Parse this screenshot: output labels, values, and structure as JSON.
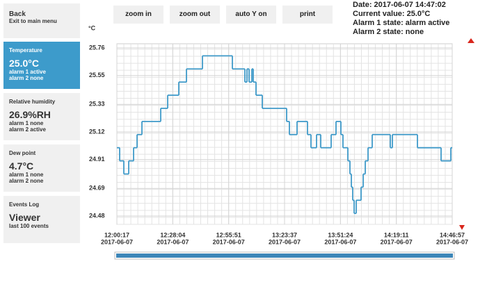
{
  "sidebar": {
    "back": {
      "title": "Back",
      "subtitle": "Exit to main menu"
    },
    "panels": [
      {
        "title": "Temperature",
        "value": "25.0°C",
        "lines": [
          "alarm 1 active",
          "alarm 2 none"
        ]
      },
      {
        "title": "Relative humidity",
        "value": "26.9%RH",
        "lines": [
          "alarm 1 none",
          "alarm 2 active"
        ]
      },
      {
        "title": "Dew point",
        "value": "4.7°C",
        "lines": [
          "alarm 1 none",
          "alarm 2 none"
        ]
      },
      {
        "title": "Events Log",
        "value": "Viewer",
        "lines": [
          "last 100 events"
        ]
      }
    ]
  },
  "toolbar": {
    "buttons": [
      "zoom in",
      "zoom out",
      "auto Y on",
      "print"
    ]
  },
  "status": [
    "Date: 2017-06-07 14:47:02",
    "Current value: 25.0°C",
    "Alarm 1 state: alarm active",
    "Alarm 2 state: none"
  ],
  "chart_data": {
    "type": "line",
    "step": true,
    "y_unit": "°C",
    "x": [
      43217,
      43300,
      43424,
      43570,
      43715,
      43819,
      43964,
      44524,
      44732,
      45063,
      45292,
      45769,
      46661,
      47034,
      47097,
      47159,
      47242,
      47283,
      47366,
      47553,
      48279,
      48362,
      48590,
      48901,
      49005,
      49171,
      49296,
      49607,
      49752,
      49897,
      49959,
      50105,
      50167,
      50209,
      50250,
      50292,
      50354,
      50499,
      50562,
      50624,
      50707,
      50831,
      51371,
      51433,
      52180,
      52885,
      53176,
      53217
    ],
    "series": [
      {
        "color": "#3f9ac9",
        "values": [
          25.0,
          24.9,
          24.8,
          24.9,
          25.0,
          25.1,
          25.2,
          25.3,
          25.4,
          25.5,
          25.6,
          25.7,
          25.6,
          25.5,
          25.6,
          25.5,
          25.6,
          25.5,
          25.4,
          25.3,
          25.2,
          25.1,
          25.2,
          25.1,
          25.0,
          25.1,
          25.0,
          25.1,
          25.2,
          25.1,
          25.0,
          24.9,
          24.8,
          24.7,
          24.6,
          24.5,
          24.6,
          24.7,
          24.8,
          24.9,
          25.0,
          25.1,
          25.0,
          25.1,
          25.0,
          24.9,
          25.0,
          25.0
        ]
      }
    ],
    "xlim": [
      43217,
      53217
    ],
    "xticks": [
      {
        "value": 43217,
        "label": "12:00:17",
        "date": "2017-06-07"
      },
      {
        "value": 44884,
        "label": "12:28:04",
        "date": "2017-06-07"
      },
      {
        "value": 46551,
        "label": "12:55:51",
        "date": "2017-06-07"
      },
      {
        "value": 48217,
        "label": "13:23:37",
        "date": "2017-06-07"
      },
      {
        "value": 49884,
        "label": "13:51:24",
        "date": "2017-06-07"
      },
      {
        "value": 51551,
        "label": "14:19:11",
        "date": "2017-06-07"
      },
      {
        "value": 53217,
        "label": "14:46:57",
        "date": "2017-06-07"
      }
    ],
    "ylim": [
      24.48,
      25.76
    ],
    "yticks": [
      24.48,
      24.69,
      24.91,
      25.12,
      25.33,
      25.55,
      25.76
    ],
    "grid": true,
    "minor_grid": true
  }
}
